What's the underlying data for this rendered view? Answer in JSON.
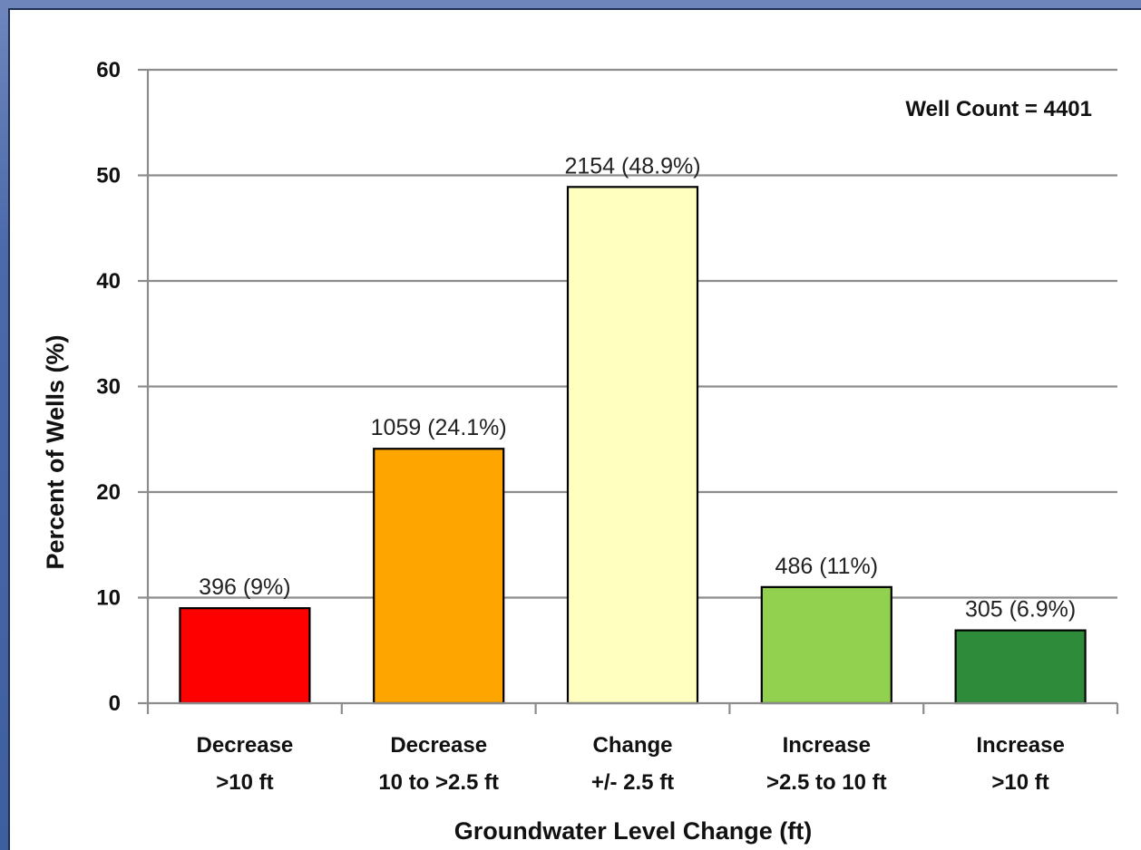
{
  "chart_data": {
    "type": "bar",
    "categories": [
      [
        "Decrease",
        ">10 ft"
      ],
      [
        "Decrease",
        "10 to >2.5 ft"
      ],
      [
        "Change",
        "+/- 2.5 ft"
      ],
      [
        "Increase",
        ">2.5 to 10 ft"
      ],
      [
        "Increase",
        ">10 ft"
      ]
    ],
    "values": [
      9,
      24.1,
      48.9,
      11,
      6.9
    ],
    "data_labels": [
      "396 (9%)",
      "1059 (24.1%)",
      "2154 (48.9%)",
      "486 (11%)",
      "305 (6.9%)"
    ],
    "colors": [
      "#ff0000",
      "#ffa500",
      "#ffffc0",
      "#92d050",
      "#2e8b3a"
    ],
    "xlabel": "Groundwater Level Change (ft)",
    "ylabel": "Percent of Wells (%)",
    "ylim": [
      0,
      60
    ],
    "yticks": [
      0,
      10,
      20,
      30,
      40,
      50,
      60
    ],
    "grid": true,
    "annotation": "Well Count = 4401"
  }
}
